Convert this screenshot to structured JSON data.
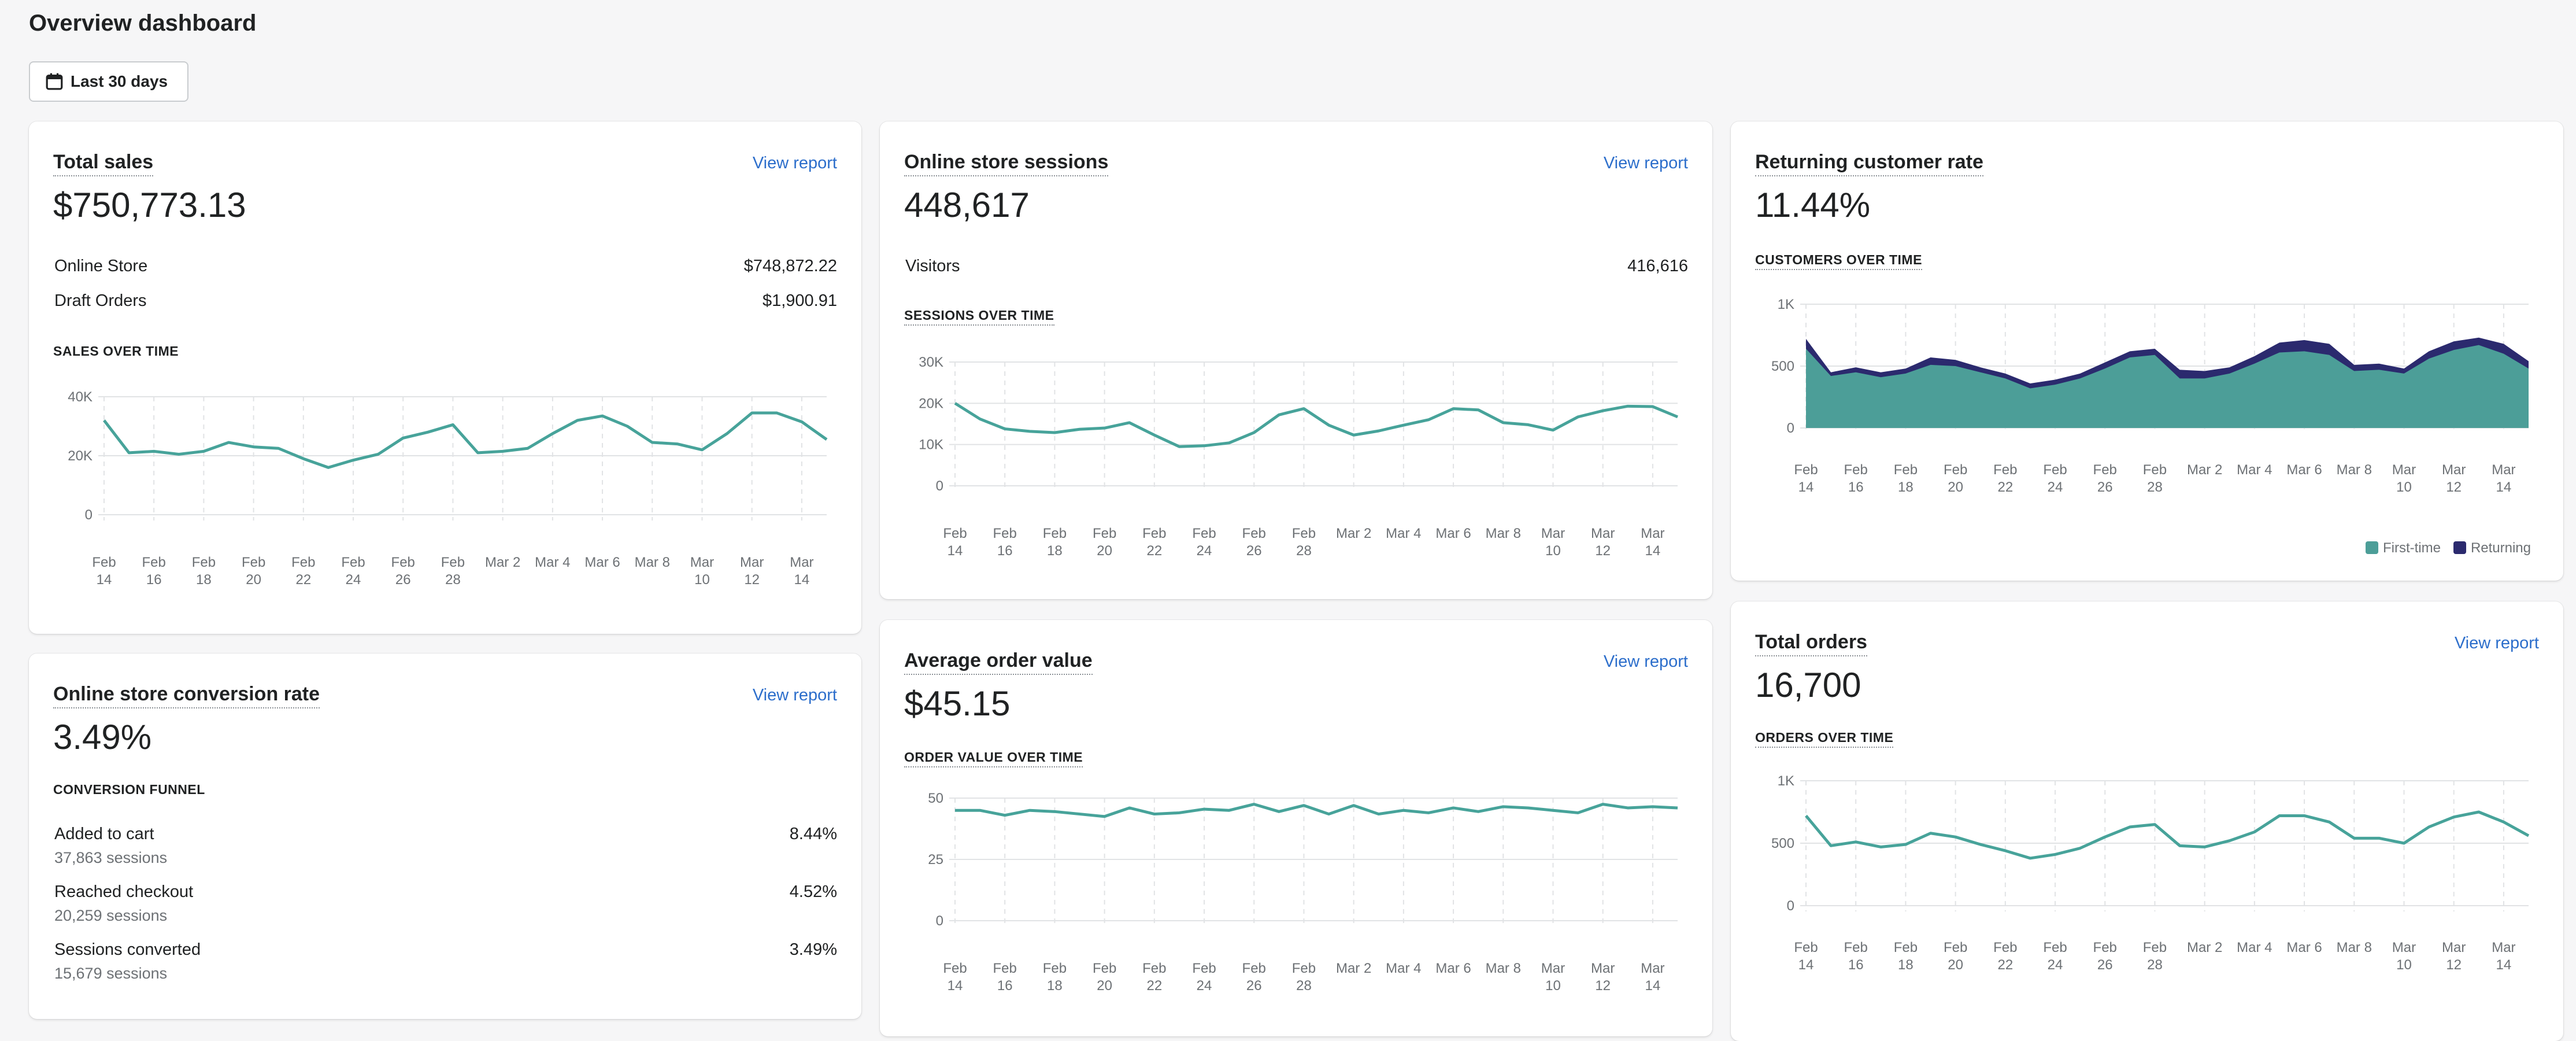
{
  "page": {
    "title": "Overview dashboard"
  },
  "date_range": {
    "label": "Last 30 days",
    "icon": "calendar-icon"
  },
  "colors": {
    "line": "#47a39a",
    "first_time": "#4c9e98",
    "returning": "#2b2a6e",
    "link": "#2c6ecb"
  },
  "x_axis_labels": [
    [
      "Feb",
      "14"
    ],
    [
      "Feb",
      "16"
    ],
    [
      "Feb",
      "18"
    ],
    [
      "Feb",
      "20"
    ],
    [
      "Feb",
      "22"
    ],
    [
      "Feb",
      "24"
    ],
    [
      "Feb",
      "26"
    ],
    [
      "Feb",
      "28"
    ],
    [
      "Mar 2",
      ""
    ],
    [
      "Mar 4",
      ""
    ],
    [
      "Mar 6",
      ""
    ],
    [
      "Mar 8",
      ""
    ],
    [
      "Mar",
      "10"
    ],
    [
      "Mar",
      "12"
    ],
    [
      "Mar",
      "14"
    ]
  ],
  "total_sales": {
    "title": "Total sales",
    "link": "View report",
    "value": "$750,773.13",
    "rows": [
      {
        "label": "Online Store",
        "value": "$748,872.22"
      },
      {
        "label": "Draft Orders",
        "value": "$1,900.91"
      }
    ],
    "chart_label": "SALES OVER TIME"
  },
  "sessions": {
    "title": "Online store sessions",
    "link": "View report",
    "value": "448,617",
    "rows": [
      {
        "label": "Visitors",
        "value": "416,616"
      }
    ],
    "chart_label": "SESSIONS OVER TIME"
  },
  "returning": {
    "title": "Returning customer rate",
    "value": "11.44%",
    "chart_label": "CUSTOMERS OVER TIME",
    "legend": {
      "first_time": "First-time",
      "returning": "Returning"
    }
  },
  "conversion": {
    "title": "Online store conversion rate",
    "link": "View report",
    "value": "3.49%",
    "funnel_label": "CONVERSION FUNNEL",
    "steps": [
      {
        "label": "Added to cart",
        "sessions": "37,863 sessions",
        "rate": "8.44%"
      },
      {
        "label": "Reached checkout",
        "sessions": "20,259 sessions",
        "rate": "4.52%"
      },
      {
        "label": "Sessions converted",
        "sessions": "15,679 sessions",
        "rate": "3.49%"
      }
    ]
  },
  "aov": {
    "title": "Average order value",
    "link": "View report",
    "value": "$45.15",
    "chart_label": "ORDER VALUE OVER TIME"
  },
  "orders": {
    "title": "Total orders",
    "link": "View report",
    "value": "16,700",
    "chart_label": "ORDERS OVER TIME"
  },
  "chart_data": [
    {
      "id": "sales",
      "type": "line",
      "title": "SALES OVER TIME",
      "yticks": [
        "0",
        "20K",
        "40K"
      ],
      "ylim": [
        0,
        40000
      ],
      "grid": true,
      "values": [
        32000,
        21000,
        21500,
        20500,
        21500,
        24500,
        23000,
        22500,
        19000,
        16000,
        18500,
        20500,
        26000,
        28000,
        30500,
        21000,
        21500,
        22500,
        27500,
        32000,
        33500,
        30000,
        24500,
        24000,
        22000,
        27500,
        34500,
        34500,
        31500,
        25500
      ]
    },
    {
      "id": "sessions",
      "type": "line",
      "title": "SESSIONS OVER TIME",
      "yticks": [
        "0",
        "10K",
        "20K",
        "30K"
      ],
      "ylim": [
        0,
        30000
      ],
      "grid": true,
      "values": [
        20000,
        16200,
        13800,
        13200,
        12900,
        13700,
        14000,
        15300,
        12300,
        9500,
        9700,
        10400,
        12900,
        17200,
        18700,
        14700,
        12300,
        13300,
        14700,
        16000,
        18700,
        18400,
        15300,
        14800,
        13500,
        16700,
        18200,
        19300,
        19200,
        16700
      ]
    },
    {
      "id": "customers",
      "type": "area",
      "stacked": true,
      "title": "CUSTOMERS OVER TIME",
      "yticks": [
        "0",
        "500",
        "1K"
      ],
      "ylim": [
        0,
        1000
      ],
      "grid": true,
      "legend": "bottom-right",
      "series": [
        {
          "name": "First-time",
          "values": [
            640,
            420,
            450,
            410,
            440,
            510,
            500,
            450,
            400,
            320,
            350,
            400,
            480,
            570,
            590,
            400,
            400,
            440,
            520,
            610,
            620,
            590,
            460,
            470,
            440,
            560,
            630,
            670,
            600,
            480
          ]
        },
        {
          "name": "Returning",
          "values": [
            80,
            30,
            40,
            40,
            40,
            60,
            50,
            40,
            40,
            40,
            40,
            40,
            50,
            50,
            50,
            70,
            60,
            50,
            60,
            80,
            90,
            90,
            50,
            50,
            40,
            60,
            70,
            60,
            80,
            60
          ]
        }
      ]
    },
    {
      "id": "aov",
      "type": "line",
      "title": "ORDER VALUE OVER TIME",
      "yticks": [
        "0",
        "25",
        "50"
      ],
      "ylim": [
        0,
        50
      ],
      "grid": true,
      "values": [
        45,
        45,
        43,
        45,
        44.5,
        43.5,
        42.5,
        46,
        43.5,
        44,
        45.5,
        45,
        47.5,
        44.5,
        47,
        43.5,
        47,
        43.5,
        45,
        44,
        46,
        44.5,
        46.5,
        46,
        45,
        44,
        47.5,
        46,
        46.5,
        46
      ]
    },
    {
      "id": "orders",
      "type": "line",
      "title": "ORDERS OVER TIME",
      "yticks": [
        "0",
        "500",
        "1K"
      ],
      "ylim": [
        0,
        1000
      ],
      "grid": true,
      "values": [
        720,
        480,
        510,
        470,
        490,
        580,
        550,
        490,
        440,
        380,
        410,
        460,
        550,
        630,
        650,
        480,
        470,
        520,
        590,
        720,
        720,
        670,
        540,
        540,
        500,
        630,
        710,
        750,
        670,
        560
      ]
    }
  ]
}
